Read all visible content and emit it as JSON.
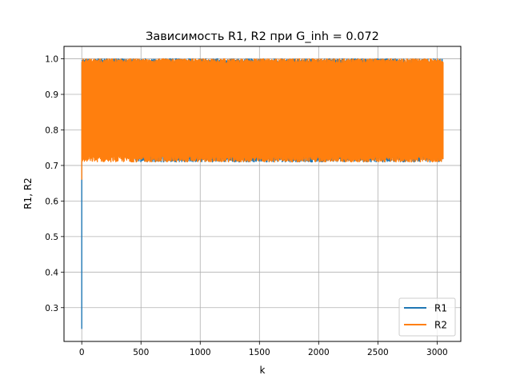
{
  "chart_data": {
    "type": "line",
    "title": "Зависимость R1, R2 при G_inh = 0.072",
    "xlabel": "k",
    "ylabel": "R1, R2",
    "xlim": [
      -150,
      3200
    ],
    "ylim": [
      0.205,
      1.035
    ],
    "x_ticks": [
      0,
      500,
      1000,
      1500,
      2000,
      2500,
      3000
    ],
    "x_tick_labels": [
      "0",
      "500",
      "1000",
      "1500",
      "2000",
      "2500",
      "3000"
    ],
    "y_ticks": [
      0.3,
      0.4,
      0.5,
      0.6,
      0.7,
      0.8,
      0.9,
      1.0
    ],
    "y_tick_labels": [
      "0.3",
      "0.4",
      "0.5",
      "0.6",
      "0.7",
      "0.8",
      "0.9",
      "1.0"
    ],
    "grid": true,
    "legend_position": "lower-right",
    "x_max": 3050,
    "series": [
      {
        "name": "R1",
        "color": "#1f77b4",
        "initial_points": [
          [
            0,
            0.24
          ],
          [
            0,
            0.65
          ],
          [
            1,
            0.99
          ],
          [
            2,
            0.74
          ]
        ],
        "transient": {
          "x_end": 450,
          "low_start": 0.92,
          "low_end": 0.73
        },
        "steady_range": [
          0.71,
          1.0
        ],
        "end_points": [
          [
            3050,
            0.72
          ],
          [
            3050,
            0.94
          ]
        ]
      },
      {
        "name": "R2",
        "color": "#ff7f0e",
        "initial_points": [
          [
            0,
            0.66
          ],
          [
            0,
            0.73
          ],
          [
            1,
            0.99
          ],
          [
            2,
            0.72
          ]
        ],
        "steady_range": [
          0.71,
          1.0
        ],
        "end_points": [
          [
            3050,
            0.72
          ],
          [
            3050,
            0.99
          ]
        ]
      }
    ]
  }
}
